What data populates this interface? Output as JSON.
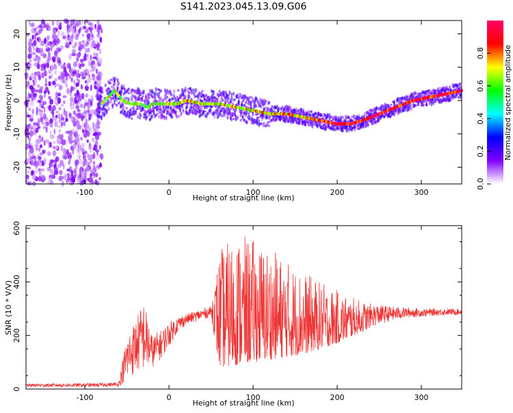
{
  "title": "S141.2023.045.13.09.G06",
  "chart_data": [
    {
      "type": "heatmap",
      "xlabel": "Height of straight line (km)",
      "ylabel": "Frequency (Hz)",
      "xlim": [
        -170,
        348
      ],
      "ylim": [
        -25,
        24
      ],
      "xticks": [
        -100,
        0,
        100,
        200,
        300
      ],
      "yticks": [
        -20,
        -10,
        0,
        10,
        20
      ],
      "ridge": {
        "x": [
          -80,
          -65,
          -55,
          -45,
          -35,
          -25,
          -20,
          -10,
          0,
          10,
          20,
          40,
          60,
          80,
          100,
          120,
          140,
          160,
          180,
          200,
          215,
          230,
          250,
          270,
          290,
          310,
          330,
          348
        ],
        "y": [
          -1,
          3,
          0,
          -1,
          -1,
          -2,
          -1,
          -1,
          -1,
          -1,
          0,
          -1,
          -1,
          -2,
          -3,
          -4,
          -4,
          -5,
          -6,
          -7,
          -7,
          -6,
          -4,
          -2,
          0,
          1,
          2,
          3
        ]
      },
      "colorbar": {
        "label": "Normalized spectral amplitude",
        "range": [
          0,
          1
        ],
        "ticks": [
          0.0,
          0.2,
          0.4,
          0.6,
          0.8
        ],
        "tick_labels": [
          "0.0",
          "0.2",
          "0.4",
          "0.6",
          "0.8"
        ],
        "colors": [
          "#ffffff",
          "#7f00ff",
          "#0000ff",
          "#00ffff",
          "#00ff00",
          "#ffff00",
          "#ff0000",
          "#ff0066"
        ]
      }
    },
    {
      "type": "line",
      "xlabel": "Height of straight line (km)",
      "ylabel": "SNR (10 * V/V)",
      "xlim": [
        -170,
        348
      ],
      "ylim": [
        0,
        610
      ],
      "xticks": [
        -100,
        0,
        100,
        200,
        300
      ],
      "yticks": [
        0,
        200,
        400,
        600
      ],
      "color": "#ee3333",
      "envelope": {
        "x": [
          -170,
          -90,
          -60,
          -50,
          -40,
          -30,
          -20,
          -10,
          0,
          10,
          20,
          30,
          40,
          50,
          60,
          80,
          100,
          120,
          140,
          160,
          180,
          200,
          220,
          240,
          260,
          280,
          300,
          320,
          348
        ],
        "lo": [
          8,
          8,
          10,
          30,
          60,
          70,
          80,
          110,
          160,
          210,
          240,
          250,
          260,
          270,
          80,
          90,
          100,
          110,
          120,
          130,
          150,
          170,
          200,
          230,
          250,
          265,
          270,
          275,
          278
        ],
        "hi": [
          20,
          22,
          25,
          200,
          260,
          330,
          200,
          220,
          250,
          270,
          280,
          290,
          300,
          310,
          520,
          580,
          560,
          530,
          480,
          440,
          400,
          370,
          340,
          320,
          310,
          305,
          300,
          300,
          300
        ]
      }
    }
  ]
}
